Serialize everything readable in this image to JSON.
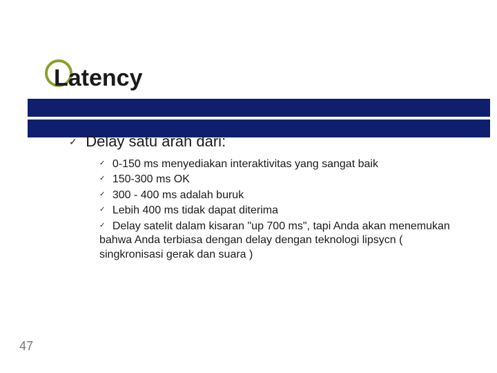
{
  "colors": {
    "accent": "#8aa030",
    "bar": "#0f1f6d",
    "text": "#1a1a1a",
    "check": "#222222",
    "pagenum": "#777777"
  },
  "title": "Latency",
  "level1": "Delay satu arah dari:",
  "sub": [
    "0-150 ms menyediakan interaktivitas yang sangat baik",
    "150-300 ms OK",
    "300 - 400 ms adalah buruk",
    "Lebih 400  ms tidak dapat diterima",
    "Delay satelit dalam kisaran \"up 700 ms\", tapi Anda akan menemukan bahwa Anda terbiasa dengan delay dengan teknologi lipsycn ( singkronisasi gerak dan suara )"
  ],
  "page_number": "47"
}
